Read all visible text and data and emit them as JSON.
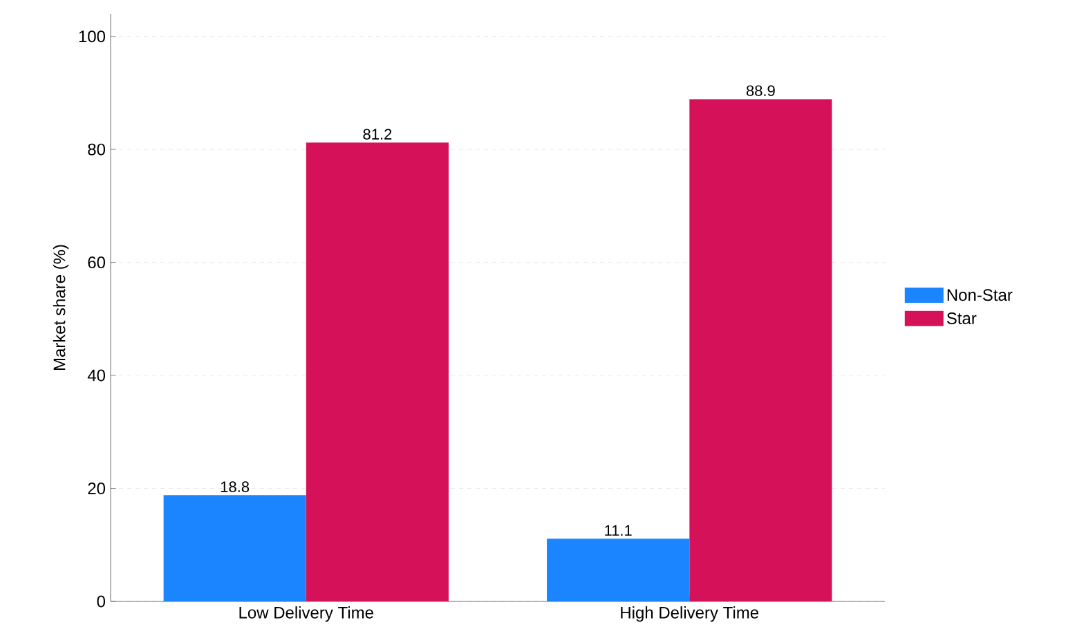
{
  "chart_data": {
    "type": "bar",
    "ylabel": "Market share (%)",
    "categories": [
      "Low Delivery Time",
      "High Delivery Time"
    ],
    "series": [
      {
        "name": "Non-Star",
        "color": "#1a85ff",
        "values": [
          18.8,
          11.1
        ]
      },
      {
        "name": "Star",
        "color": "#d41159",
        "values": [
          81.2,
          88.9
        ]
      }
    ],
    "ylim": [
      0,
      104
    ],
    "yticks": [
      0,
      20,
      40,
      60,
      80,
      100
    ],
    "grid": "y",
    "legend": "right",
    "data_labels": true
  }
}
